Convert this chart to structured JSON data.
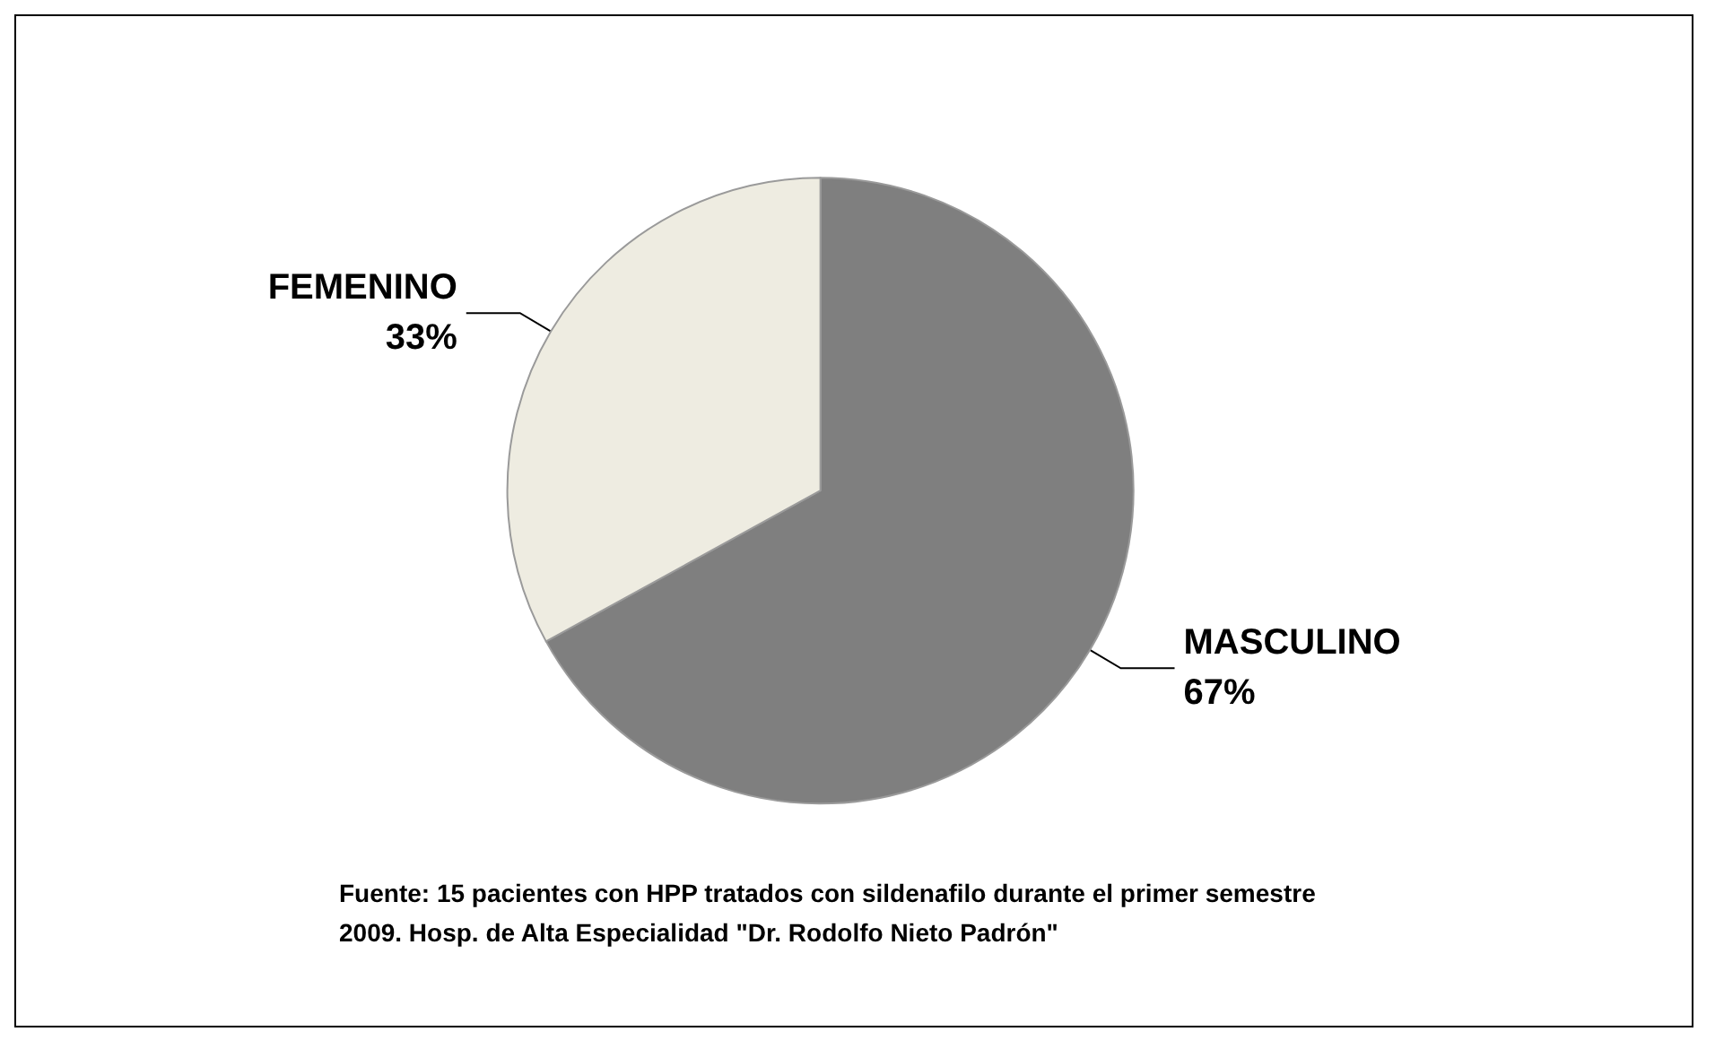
{
  "chart_data": {
    "type": "pie",
    "categories": [
      "MASCULINO",
      "FEMENINO"
    ],
    "values": [
      67,
      33
    ],
    "value_labels": [
      "67%",
      "33%"
    ],
    "colors": [
      "#7f7f7f",
      "#eeece1"
    ],
    "legend": false,
    "annotations": [
      "Fuente: 15 pacientes con HPP tratados con sildenafilo durante el primer semestre 2009. Hosp. de Alta Especialidad \"Dr. Rodolfo Nieto Padrón\""
    ]
  }
}
